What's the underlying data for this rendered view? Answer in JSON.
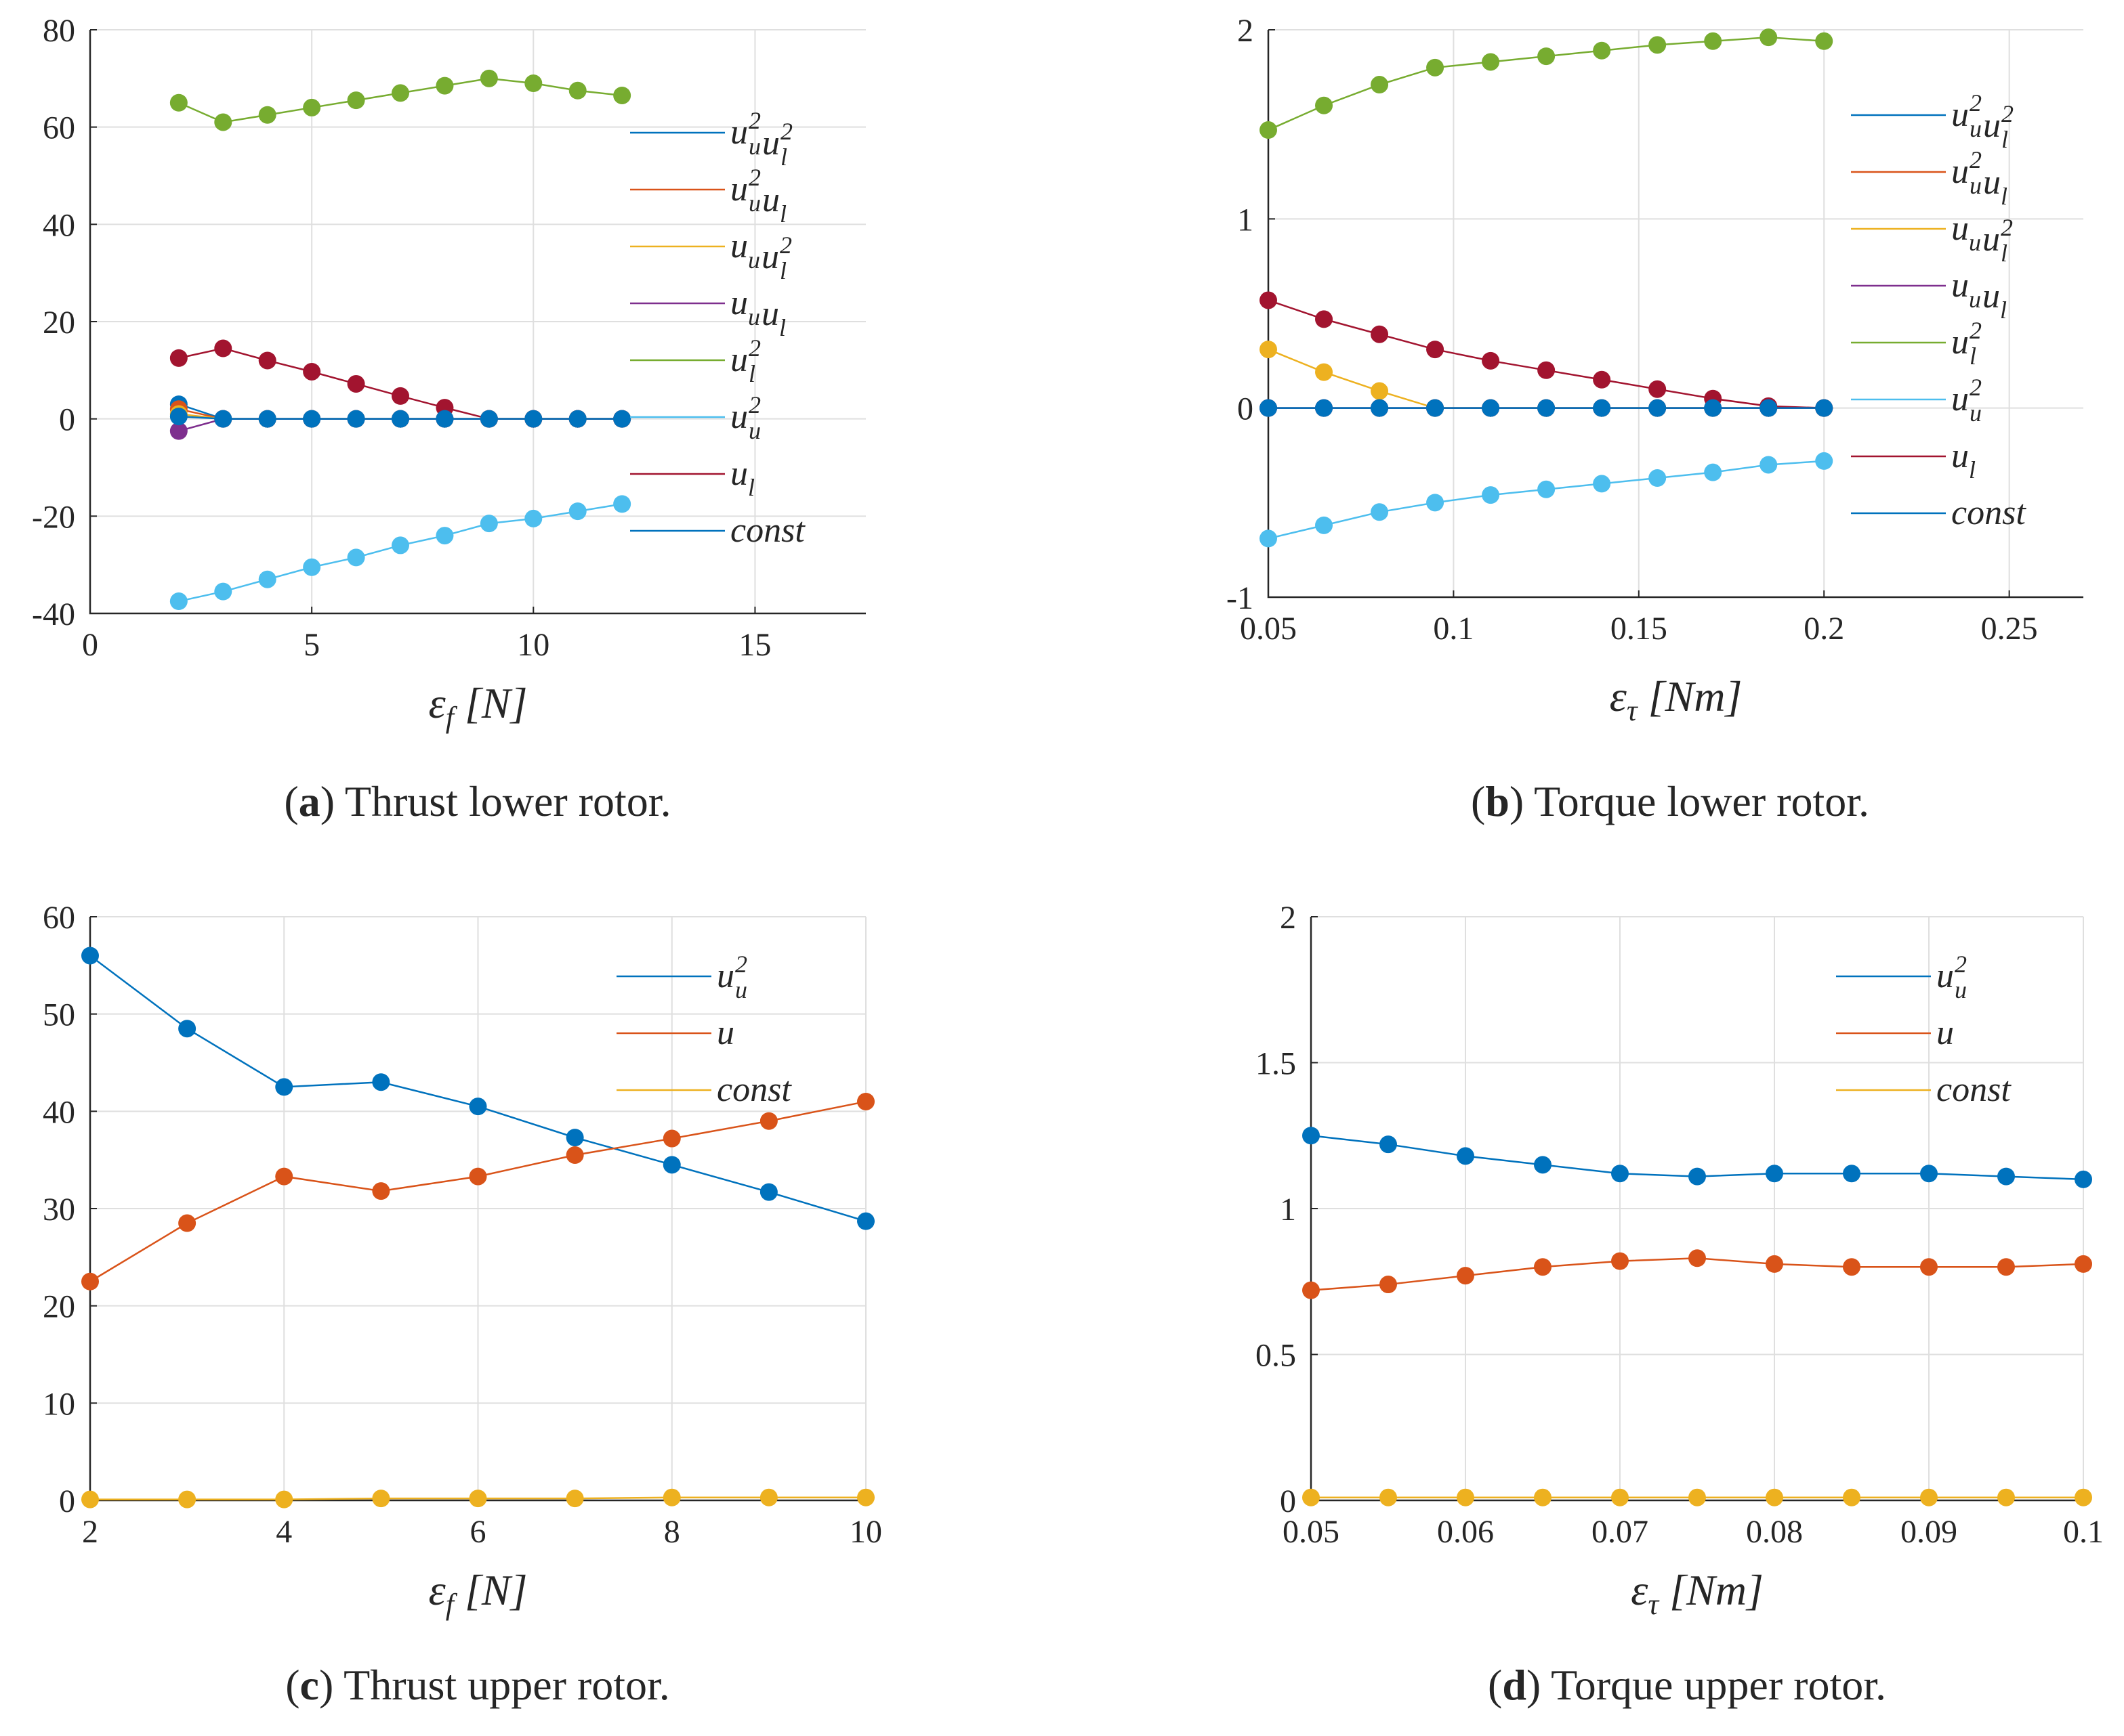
{
  "colors": {
    "blue": "#0072BD",
    "orange": "#D95319",
    "yellow": "#EDB120",
    "purple": "#7E2F8E",
    "green": "#77AC30",
    "cyan": "#4DBEEE",
    "darkred": "#A2142F"
  },
  "chart_data": [
    {
      "id": "a",
      "type": "line",
      "title": "",
      "xlabel": "εf [N]",
      "xlabel_main": "ε",
      "xlabel_sub": "f",
      "xlabel_unit": " [N]",
      "ylabel": "",
      "xlim": [
        0,
        17.5
      ],
      "ylim": [
        -40,
        80
      ],
      "xticks": [
        0,
        5,
        10,
        15
      ],
      "xtick_labels": [
        "0",
        "5",
        "10",
        "15"
      ],
      "yticks": [
        -40,
        -20,
        0,
        20,
        40,
        60,
        80
      ],
      "ytick_labels": [
        "-40",
        "-20",
        "0",
        "20",
        "40",
        "60",
        "80"
      ],
      "grid": true,
      "legend_position": "right",
      "caption_letter": "(a)",
      "caption_text": "Thrust lower rotor.",
      "x": [
        2,
        3,
        4,
        5,
        6,
        7,
        8,
        9,
        10,
        11,
        12
      ],
      "series": [
        {
          "name": "uu²ul²",
          "legend_label": "uu²ul²",
          "color": "#0072BD",
          "values": [
            3,
            0,
            0,
            0,
            0,
            0,
            0,
            0,
            0,
            0,
            0
          ]
        },
        {
          "name": "uu²ul",
          "legend_label": "uu²ul",
          "color": "#D95319",
          "values": [
            2,
            0,
            0,
            0,
            0,
            0,
            0,
            0,
            0,
            0,
            0
          ]
        },
        {
          "name": "uuul²",
          "legend_label": "uuul²",
          "color": "#EDB120",
          "values": [
            1,
            0,
            0,
            0,
            0,
            0,
            0,
            0,
            0,
            0,
            0
          ]
        },
        {
          "name": "uuul",
          "legend_label": "uuul",
          "color": "#7E2F8E",
          "values": [
            -2.5,
            0,
            0,
            0,
            0,
            0,
            0,
            0,
            0,
            0,
            0
          ]
        },
        {
          "name": "ul²",
          "legend_label": "ul²",
          "color": "#77AC30",
          "values": [
            65,
            61,
            62.5,
            64,
            65.5,
            67,
            68.5,
            70,
            69,
            67.5,
            66.5
          ]
        },
        {
          "name": "uu²",
          "legend_label": "uu²",
          "color": "#4DBEEE",
          "values": [
            -37.5,
            -35.5,
            -33,
            -30.5,
            -28.5,
            -26,
            -24,
            -21.5,
            -20.5,
            -19,
            -17.5
          ]
        },
        {
          "name": "ul",
          "legend_label": "ul",
          "color": "#A2142F",
          "values": [
            12.5,
            14.5,
            12,
            9.7,
            7.2,
            4.7,
            2.3,
            0,
            0,
            0,
            0
          ]
        },
        {
          "name": "const",
          "legend_label": "const",
          "color": "#0072BD",
          "values": [
            0.5,
            0,
            0,
            0,
            0,
            0,
            0,
            0,
            0,
            0,
            0
          ]
        }
      ]
    },
    {
      "id": "b",
      "type": "line",
      "title": "",
      "xlabel": "ετ [Nm]",
      "xlabel_main": "ε",
      "xlabel_sub": "τ",
      "xlabel_unit": " [Nm]",
      "ylabel": "",
      "xlim": [
        0.05,
        0.27
      ],
      "ylim": [
        -1,
        2
      ],
      "xticks": [
        0.05,
        0.1,
        0.15,
        0.2,
        0.25
      ],
      "xtick_labels": [
        "0.05",
        "0.1",
        "0.15",
        "0.2",
        "0.25"
      ],
      "yticks": [
        -1,
        0,
        1,
        2
      ],
      "ytick_labels": [
        "-1",
        "0",
        "1",
        "2"
      ],
      "grid": true,
      "legend_position": "right",
      "caption_letter": "(b)",
      "caption_text": "Torque lower rotor.",
      "x": [
        0.05,
        0.065,
        0.08,
        0.095,
        0.11,
        0.125,
        0.14,
        0.155,
        0.17,
        0.185,
        0.2
      ],
      "series": [
        {
          "name": "uu²ul²",
          "legend_label": "uu²ul²",
          "color": "#0072BD",
          "values": [
            0,
            0,
            0,
            0,
            0,
            0,
            0,
            0,
            0,
            0,
            0
          ]
        },
        {
          "name": "uu²ul",
          "legend_label": "uu²ul",
          "color": "#D95319",
          "values": [
            0,
            0,
            0,
            0,
            0,
            0,
            0,
            0,
            0,
            0,
            0
          ]
        },
        {
          "name": "uuul²",
          "legend_label": "uuul²",
          "color": "#EDB120",
          "values": [
            0.31,
            0.19,
            0.09,
            0,
            0,
            0,
            0,
            0,
            0,
            0,
            0
          ]
        },
        {
          "name": "uuul",
          "legend_label": "uuul",
          "color": "#7E2F8E",
          "values": [
            0,
            0,
            0,
            0,
            0,
            0,
            0,
            0,
            0,
            0,
            0
          ]
        },
        {
          "name": "ul²",
          "legend_label": "ul²",
          "color": "#77AC30",
          "values": [
            1.47,
            1.6,
            1.71,
            1.8,
            1.83,
            1.86,
            1.89,
            1.92,
            1.94,
            1.96,
            1.94
          ]
        },
        {
          "name": "uu²",
          "legend_label": "uu²",
          "color": "#4DBEEE",
          "values": [
            -0.69,
            -0.62,
            -0.55,
            -0.5,
            -0.46,
            -0.43,
            -0.4,
            -0.37,
            -0.34,
            -0.3,
            -0.28
          ]
        },
        {
          "name": "ul",
          "legend_label": "ul",
          "color": "#A2142F",
          "values": [
            0.57,
            0.47,
            0.39,
            0.31,
            0.25,
            0.2,
            0.15,
            0.1,
            0.05,
            0.01,
            0
          ]
        },
        {
          "name": "const",
          "legend_label": "const",
          "color": "#0072BD",
          "values": [
            0,
            0,
            0,
            0,
            0,
            0,
            0,
            0,
            0,
            0,
            0
          ]
        }
      ]
    },
    {
      "id": "c",
      "type": "line",
      "title": "",
      "xlabel": "εf [N]",
      "xlabel_main": "ε",
      "xlabel_sub": "f",
      "xlabel_unit": " [N]",
      "ylabel": "",
      "xlim": [
        2,
        10
      ],
      "ylim": [
        0,
        60
      ],
      "xticks": [
        2,
        4,
        6,
        8,
        10
      ],
      "xtick_labels": [
        "2",
        "4",
        "6",
        "8",
        "10"
      ],
      "yticks": [
        0,
        10,
        20,
        30,
        40,
        50,
        60
      ],
      "ytick_labels": [
        "0",
        "10",
        "20",
        "30",
        "40",
        "50",
        "60"
      ],
      "grid": true,
      "legend_position": "top-right",
      "caption_letter": "(c)",
      "caption_text": "Thrust upper rotor.",
      "x": [
        2,
        3,
        4,
        5,
        6,
        7,
        8,
        9,
        10
      ],
      "series": [
        {
          "name": "uu²",
          "legend_label": "uu²",
          "color": "#0072BD",
          "values": [
            56,
            48.5,
            42.5,
            43,
            40.5,
            37.3,
            34.5,
            31.7,
            28.7
          ]
        },
        {
          "name": "u",
          "legend_label": "u",
          "color": "#D95319",
          "values": [
            22.5,
            28.5,
            33.3,
            31.8,
            33.3,
            35.5,
            37.2,
            39,
            41
          ]
        },
        {
          "name": "const",
          "legend_label": "const",
          "color": "#EDB120",
          "values": [
            0.1,
            0.1,
            0.1,
            0.2,
            0.2,
            0.2,
            0.3,
            0.3,
            0.3
          ]
        }
      ]
    },
    {
      "id": "d",
      "type": "line",
      "title": "",
      "xlabel": "ετ [Nm]",
      "xlabel_main": "ε",
      "xlabel_sub": "τ",
      "xlabel_unit": " [Nm]",
      "ylabel": "",
      "xlim": [
        0.05,
        0.1
      ],
      "ylim": [
        0,
        2
      ],
      "xticks": [
        0.05,
        0.06,
        0.07,
        0.08,
        0.09,
        0.1
      ],
      "xtick_labels": [
        "0.05",
        "0.06",
        "0.07",
        "0.08",
        "0.09",
        "0.1"
      ],
      "yticks": [
        0,
        0.5,
        1,
        1.5,
        2
      ],
      "ytick_labels": [
        "0",
        "0.5",
        "1",
        "1.5",
        "2"
      ],
      "grid": true,
      "legend_position": "top-right",
      "caption_letter": "(d)",
      "caption_text": "Torque upper rotor.",
      "x": [
        0.05,
        0.055,
        0.06,
        0.065,
        0.07,
        0.075,
        0.08,
        0.085,
        0.09,
        0.095,
        0.1
      ],
      "series": [
        {
          "name": "uu²",
          "legend_label": "uu²",
          "color": "#0072BD",
          "values": [
            1.25,
            1.22,
            1.18,
            1.15,
            1.12,
            1.11,
            1.12,
            1.12,
            1.12,
            1.11,
            1.1
          ]
        },
        {
          "name": "u",
          "legend_label": "u",
          "color": "#D95319",
          "values": [
            0.72,
            0.74,
            0.77,
            0.8,
            0.82,
            0.83,
            0.81,
            0.8,
            0.8,
            0.8,
            0.81
          ]
        },
        {
          "name": "const",
          "legend_label": "const",
          "color": "#EDB120",
          "values": [
            0.01,
            0.01,
            0.01,
            0.01,
            0.01,
            0.01,
            0.01,
            0.01,
            0.01,
            0.01,
            0.01
          ]
        }
      ]
    }
  ]
}
